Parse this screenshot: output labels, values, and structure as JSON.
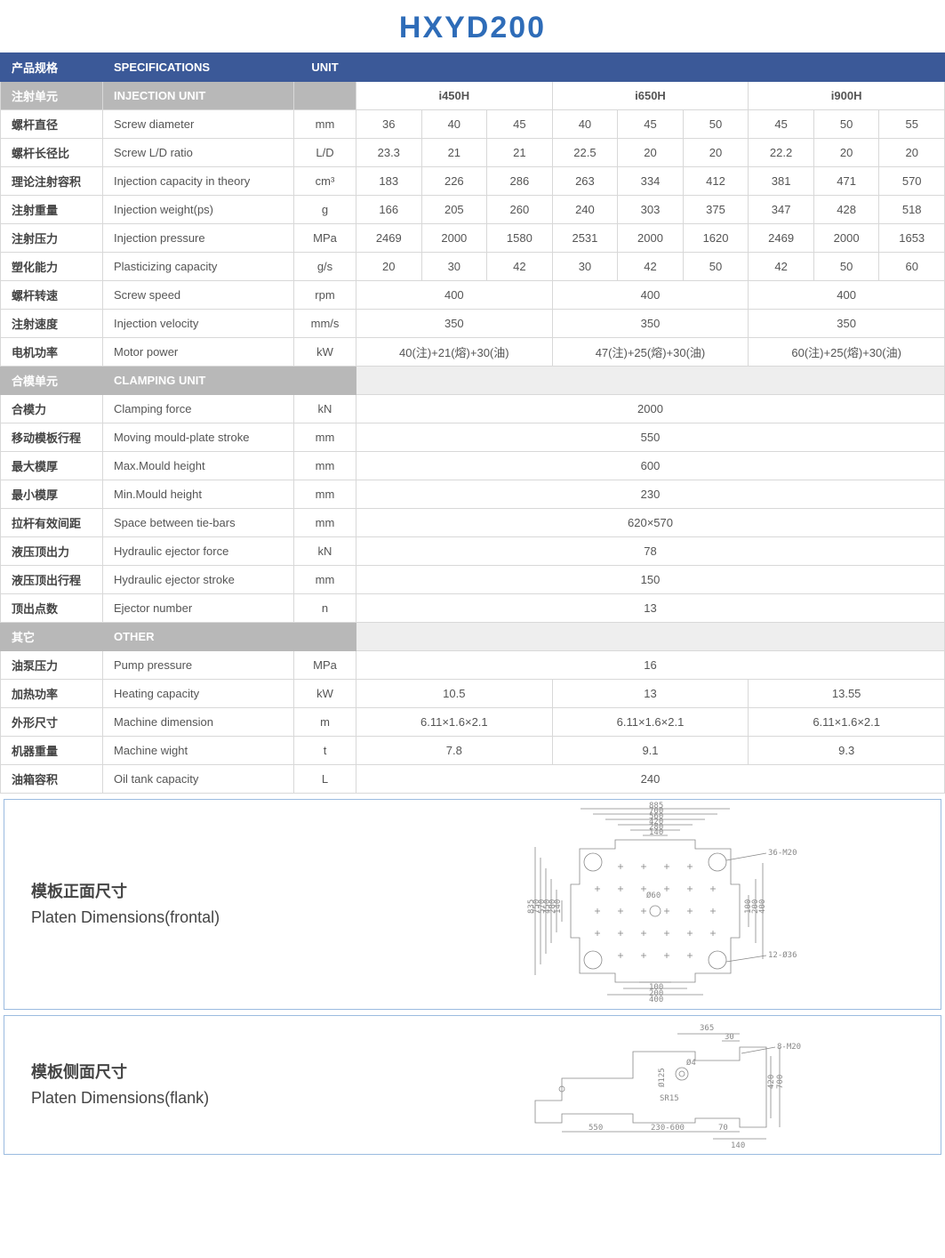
{
  "title": "HXYD200",
  "header": {
    "cn": "产品规格",
    "en": "SPECIFICATIONS",
    "unit": "UNIT"
  },
  "models": [
    "i450H",
    "i650H",
    "i900H"
  ],
  "sections": [
    {
      "cn": "注射单元",
      "en": "INJECTION UNIT"
    },
    {
      "cn": "合模单元",
      "en": "CLAMPING UNIT"
    },
    {
      "cn": "其它",
      "en": "OTHER"
    }
  ],
  "injection_rows": [
    {
      "cn": "螺杆直径",
      "en": "Screw diameter",
      "unit": "mm",
      "v": [
        "36",
        "40",
        "45",
        "40",
        "45",
        "50",
        "45",
        "50",
        "55"
      ]
    },
    {
      "cn": "螺杆长径比",
      "en": "Screw L/D ratio",
      "unit": "L/D",
      "v": [
        "23.3",
        "21",
        "21",
        "22.5",
        "20",
        "20",
        "22.2",
        "20",
        "20"
      ]
    },
    {
      "cn": "理论注射容积",
      "en": "Injection capacity in theory",
      "unit": "cm³",
      "v": [
        "183",
        "226",
        "286",
        "263",
        "334",
        "412",
        "381",
        "471",
        "570"
      ]
    },
    {
      "cn": "注射重量",
      "en": "Injection weight(ps)",
      "unit": "g",
      "v": [
        "166",
        "205",
        "260",
        "240",
        "303",
        "375",
        "347",
        "428",
        "518"
      ]
    },
    {
      "cn": "注射压力",
      "en": "Injection pressure",
      "unit": "MPa",
      "v": [
        "2469",
        "2000",
        "1580",
        "2531",
        "2000",
        "1620",
        "2469",
        "2000",
        "1653"
      ]
    },
    {
      "cn": "塑化能力",
      "en": "Plasticizing capacity",
      "unit": "g/s",
      "v": [
        "20",
        "30",
        "42",
        "30",
        "42",
        "50",
        "42",
        "50",
        "60"
      ]
    }
  ],
  "injection_group_rows": [
    {
      "cn": "螺杆转速",
      "en": "Screw speed",
      "unit": "rpm",
      "g": [
        "400",
        "400",
        "400"
      ]
    },
    {
      "cn": "注射速度",
      "en": "Injection velocity",
      "unit": "mm/s",
      "g": [
        "350",
        "350",
        "350"
      ]
    },
    {
      "cn": "电机功率",
      "en": "Motor power",
      "unit": "kW",
      "g": [
        "40(注)+21(熔)+30(油)",
        "47(注)+25(熔)+30(油)",
        "60(注)+25(熔)+30(油)"
      ]
    }
  ],
  "clamping_full_rows": [
    {
      "cn": "合模力",
      "en": "Clamping force",
      "unit": "kN",
      "f": "2000"
    },
    {
      "cn": "移动模板行程",
      "en": "Moving mould-plate stroke",
      "unit": "mm",
      "f": "550"
    },
    {
      "cn": "最大模厚",
      "en": "Max.Mould height",
      "unit": "mm",
      "f": "600"
    },
    {
      "cn": "最小模厚",
      "en": "Min.Mould height",
      "unit": "mm",
      "f": "230"
    },
    {
      "cn": "拉杆有效间距",
      "en": "Space between tie-bars",
      "unit": "mm",
      "f": "620×570"
    },
    {
      "cn": "液压顶出力",
      "en": "Hydraulic ejector force",
      "unit": "kN",
      "f": "78"
    },
    {
      "cn": "液压顶出行程",
      "en": "Hydraulic ejector stroke",
      "unit": "mm",
      "f": "150"
    },
    {
      "cn": "顶出点数",
      "en": "Ejector number",
      "unit": "n",
      "f": "13"
    }
  ],
  "other_rows": [
    {
      "cn": "油泵压力",
      "en": "Pump pressure",
      "unit": "MPa",
      "type": "full",
      "f": "16"
    },
    {
      "cn": "加热功率",
      "en": "Heating capacity",
      "unit": "kW",
      "type": "group",
      "g": [
        "10.5",
        "13",
        "13.55"
      ]
    },
    {
      "cn": "外形尺寸",
      "en": "Machine dimension",
      "unit": "m",
      "type": "group",
      "g": [
        "6.11×1.6×2.1",
        "6.11×1.6×2.1",
        "6.11×1.6×2.1"
      ]
    },
    {
      "cn": "机器重量",
      "en": "Machine wight",
      "unit": "t",
      "type": "group",
      "g": [
        "7.8",
        "9.1",
        "9.3"
      ]
    },
    {
      "cn": "油箱容积",
      "en": "Oil tank capacity",
      "unit": "L",
      "type": "full",
      "f": "240"
    }
  ],
  "diagrams": {
    "frontal": {
      "cn": "模板正面尺寸",
      "en": "Platen Dimensions(frontal)",
      "top_dims": [
        "885",
        "700",
        "560",
        "420",
        "280",
        "140"
      ],
      "left_dims": [
        "835",
        "750",
        "570",
        "450",
        "280",
        "140"
      ],
      "right_dims": [
        "100",
        "200",
        "400"
      ],
      "bottom_dims": [
        "100",
        "200",
        "400"
      ],
      "center": "Ø60",
      "note1": "36-M20",
      "note2": "12-Ø36"
    },
    "flank": {
      "cn": "模板侧面尺寸",
      "en": "Platen Dimensions(flank)",
      "top": [
        "365",
        "30"
      ],
      "right": [
        "420",
        "700"
      ],
      "bottom": [
        "550",
        "230-600",
        "70",
        "140"
      ],
      "inner": [
        "Ø125",
        "Ø4",
        "SR15"
      ],
      "note": "8-M20"
    }
  }
}
